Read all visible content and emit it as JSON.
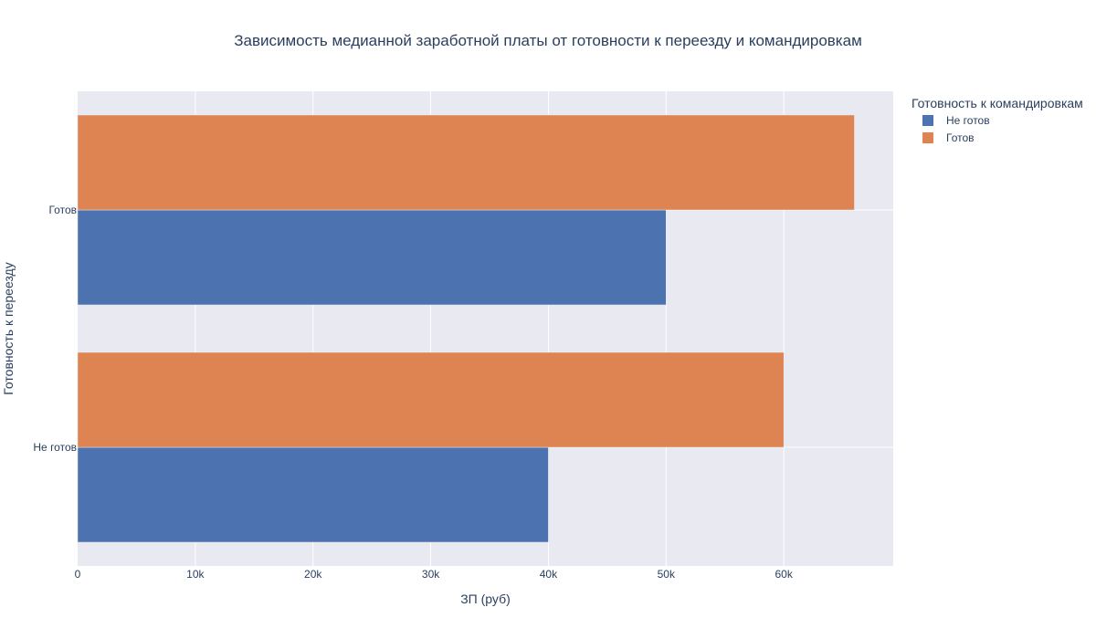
{
  "chart_data": {
    "type": "bar",
    "orientation": "horizontal",
    "title": "Зависимость медианной заработной платы от готовности к переезду и командировкам",
    "xlabel": "ЗП (руб)",
    "ylabel": "Готовность к переезду",
    "categories": [
      "Не готов",
      "Готов"
    ],
    "series": [
      {
        "name": "Не готов",
        "color": "#4c72b0",
        "values": [
          40000,
          50000
        ]
      },
      {
        "name": "Готов",
        "color": "#dd8452",
        "values": [
          60000,
          66000
        ]
      }
    ],
    "xlim": [
      0,
      69300
    ],
    "xticks": [
      0,
      10000,
      20000,
      30000,
      40000,
      50000,
      60000
    ],
    "xtick_labels": [
      "0",
      "10k",
      "20k",
      "30k",
      "40k",
      "50k",
      "60k"
    ],
    "legend_title": "Готовность к командировкам",
    "legend_position": "right",
    "grid": true,
    "plot_background": "#e9e9f2"
  }
}
